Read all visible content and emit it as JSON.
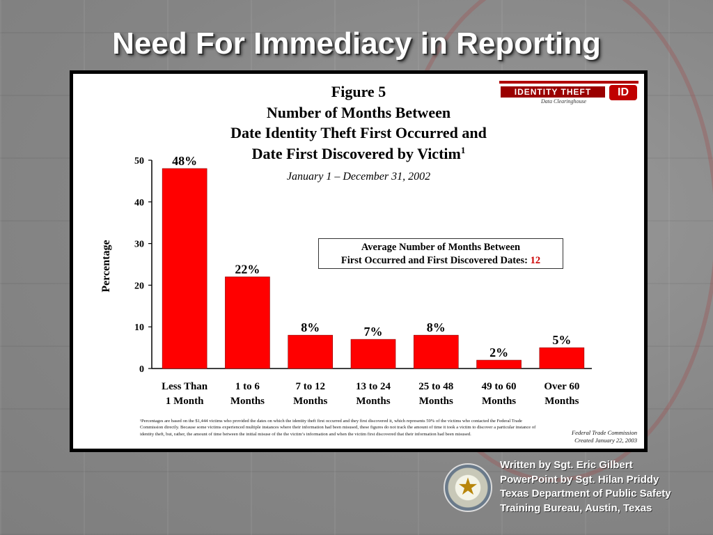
{
  "slide": {
    "title": "Need For Immediacy in Reporting"
  },
  "logo": {
    "name": "IDENTITY THEFT",
    "subtitle": "Data Clearinghouse",
    "mark": "ID"
  },
  "chart_data": {
    "type": "bar",
    "figure_label": "Figure 5",
    "title_lines": [
      "Number of Months Between",
      "Date Identity Theft First Occurred and",
      "Date First Discovered by Victim"
    ],
    "title_superscript": "1",
    "subtitle": "January 1 – December 31, 2002",
    "ylabel": "Percentage",
    "xlabel": "",
    "ylim": [
      0,
      50
    ],
    "yticks": [
      0,
      10,
      20,
      30,
      40,
      50
    ],
    "grid": false,
    "categories": [
      [
        "Less Than",
        "1 Month"
      ],
      [
        "1 to 6",
        "Months"
      ],
      [
        "7 to 12",
        "Months"
      ],
      [
        "13 to 24",
        "Months"
      ],
      [
        "25 to 48",
        "Months"
      ],
      [
        "49 to 60",
        "Months"
      ],
      [
        "Over 60",
        "Months"
      ]
    ],
    "values": [
      48,
      22,
      8,
      7,
      8,
      2,
      5
    ],
    "value_labels": [
      "48%",
      "22%",
      "8%",
      "7%",
      "8%",
      "2%",
      "5%"
    ],
    "bar_color": "#ff0000",
    "annotation": {
      "line1": "Average Number of Months Between",
      "line2": "First Occurred and First Discovered Dates:",
      "value": "12"
    },
    "footnote": "¹Percentages are based on the $1,444 victims who provided the dates on which the identity theft first occurred and they first discovered it, which represents 59% of the victims who contacted the Federal Trade Commission directly. Because some victims experienced multiple instances where their information had been misused, these figures do not track the amount of time it took a victim to discover a particular instance of identity theft, but, rather, the amount of time between the initial misuse of the the victim’s information and when the victim first discovered that their information had been misused.",
    "source_lines": [
      "Federal Trade Commission",
      "Created January 22, 2003"
    ]
  },
  "credits": [
    "Written by Sgt. Eric Gilbert",
    "PowerPoint by Sgt. Hilan Priddy",
    "Texas Department of Public Safety",
    "Training Bureau, Austin, Texas"
  ]
}
